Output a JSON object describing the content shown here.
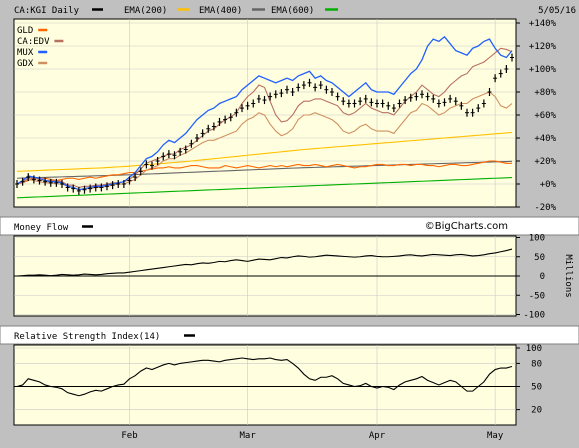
{
  "header": {
    "symbol": "CA:KGI Daily",
    "ema200": "EMA(200)",
    "ema400": "EMA(400)",
    "ema600": "EMA(600)",
    "date": "5/05/16"
  },
  "colors": {
    "plot_bg": "#ffffe0",
    "frame_bg": "#c0c0c0",
    "price": "#000000",
    "ema200": "#ffc000",
    "ema400": "#666666",
    "ema600": "#00b000",
    "gld": "#ff6600",
    "edv": "#b87060",
    "mux": "#2060ff",
    "gdx": "#d09060",
    "grid": "#c8c8c8"
  },
  "legend": [
    {
      "label": "GLD",
      "color": "#ff6600"
    },
    {
      "label": "CA:EDV",
      "color": "#b87060"
    },
    {
      "label": "MUX",
      "color": "#2060ff"
    },
    {
      "label": "GDX",
      "color": "#d09060"
    }
  ],
  "watermark": "©BigCharts.com",
  "money_flow_title": "Money Flow",
  "rsi_title": "Relative Strength Index(14)",
  "millions_label": "Millions",
  "x_tick_labels": [
    "Feb",
    "Mar",
    "Apr",
    "May"
  ],
  "chart_data": [
    {
      "type": "line",
      "title": "CA:KGI Daily",
      "ylabel": "",
      "y_tick_labels": [
        "+140%",
        "+120%",
        "+100%",
        "+80%",
        "+60%",
        "+40%",
        "+20%",
        "+0%",
        "-20%"
      ],
      "ylim": [
        -20,
        140
      ],
      "x": [
        "Jan 04",
        "Jan 05",
        "Jan 06",
        "Jan 07",
        "Jan 08",
        "Jan 11",
        "Jan 12",
        "Jan 13",
        "Jan 14",
        "Jan 15",
        "Jan 18",
        "Jan 19",
        "Jan 20",
        "Jan 21",
        "Jan 22",
        "Jan 25",
        "Jan 26",
        "Jan 27",
        "Jan 28",
        "Jan 29",
        "Feb 01",
        "Feb 02",
        "Feb 03",
        "Feb 04",
        "Feb 05",
        "Feb 08",
        "Feb 09",
        "Feb 10",
        "Feb 11",
        "Feb 12",
        "Feb 15",
        "Feb 16",
        "Feb 17",
        "Feb 18",
        "Feb 19",
        "Feb 22",
        "Feb 23",
        "Feb 24",
        "Feb 25",
        "Feb 26",
        "Feb 29",
        "Mar 01",
        "Mar 02",
        "Mar 03",
        "Mar 04",
        "Mar 07",
        "Mar 08",
        "Mar 09",
        "Mar 10",
        "Mar 11",
        "Mar 14",
        "Mar 15",
        "Mar 16",
        "Mar 17",
        "Mar 18",
        "Mar 21",
        "Mar 22",
        "Mar 23",
        "Mar 24",
        "Mar 25",
        "Mar 28",
        "Mar 29",
        "Mar 30",
        "Mar 31",
        "Apr 01",
        "Apr 04",
        "Apr 05",
        "Apr 06",
        "Apr 07",
        "Apr 08",
        "Apr 11",
        "Apr 12",
        "Apr 13",
        "Apr 14",
        "Apr 15",
        "Apr 18",
        "Apr 19",
        "Apr 20",
        "Apr 21",
        "Apr 22",
        "Apr 25",
        "Apr 26",
        "Apr 27",
        "Apr 28",
        "Apr 29",
        "May 02",
        "May 03",
        "May 04",
        "May 05"
      ],
      "series": [
        {
          "name": "CA:KGI",
          "color": "#000000",
          "values": [
            0,
            2,
            6,
            4,
            3,
            2,
            1,
            1,
            0,
            -3,
            -4,
            -6,
            -5,
            -4,
            -3,
            -3,
            -2,
            -1,
            0,
            0,
            3,
            6,
            11,
            17,
            16,
            20,
            24,
            26,
            25,
            28,
            30,
            35,
            40,
            44,
            48,
            50,
            54,
            56,
            58,
            62,
            66,
            68,
            70,
            74,
            73,
            76,
            78,
            79,
            82,
            80,
            84,
            86,
            88,
            84,
            86,
            82,
            80,
            76,
            72,
            70,
            70,
            72,
            74,
            71,
            70,
            70,
            68,
            66,
            70,
            73,
            75,
            76,
            78,
            76,
            74,
            70,
            71,
            74,
            72,
            68,
            62,
            62,
            66,
            70,
            80,
            92,
            96,
            100,
            110
          ]
        },
        {
          "name": "GLD",
          "color": "#ff6600",
          "values": [
            0,
            1,
            3,
            5,
            4,
            5,
            4,
            3,
            4,
            5,
            5,
            4,
            5,
            6,
            5,
            6,
            7,
            8,
            8,
            9,
            10,
            10,
            11,
            12,
            13,
            14,
            14,
            15,
            14,
            14,
            15,
            16,
            16,
            15,
            14,
            14,
            14,
            16,
            15,
            14,
            15,
            16,
            15,
            14,
            15,
            16,
            15,
            16,
            15,
            16,
            17,
            16,
            16,
            17,
            16,
            15,
            16,
            17,
            16,
            15,
            14,
            15,
            15,
            16,
            17,
            17,
            16,
            16,
            17,
            17,
            16,
            17,
            17,
            16,
            16,
            15,
            16,
            17,
            17,
            16,
            16,
            17,
            18,
            19,
            20,
            20,
            19,
            18,
            18
          ]
        },
        {
          "name": "CA:EDV",
          "color": "#b87060",
          "values": [
            0,
            2,
            5,
            5,
            4,
            3,
            3,
            3,
            2,
            -1,
            -1,
            -3,
            -2,
            -2,
            -1,
            -1,
            0,
            1,
            1,
            2,
            4,
            8,
            13,
            18,
            20,
            22,
            24,
            26,
            26,
            30,
            32,
            34,
            38,
            42,
            46,
            48,
            52,
            56,
            58,
            62,
            70,
            76,
            80,
            86,
            84,
            72,
            60,
            54,
            55,
            60,
            68,
            72,
            72,
            74,
            74,
            72,
            70,
            68,
            62,
            60,
            62,
            66,
            70,
            66,
            64,
            62,
            62,
            60,
            66,
            72,
            76,
            80,
            86,
            82,
            78,
            76,
            80,
            86,
            90,
            94,
            96,
            102,
            104,
            106,
            110,
            114,
            118,
            117,
            115
          ]
        },
        {
          "name": "MUX",
          "color": "#2060ff",
          "values": [
            0,
            3,
            7,
            6,
            5,
            3,
            2,
            2,
            1,
            -2,
            -3,
            -5,
            -4,
            -3,
            -2,
            -2,
            -1,
            0,
            1,
            2,
            6,
            10,
            16,
            22,
            24,
            28,
            34,
            38,
            36,
            40,
            44,
            50,
            56,
            60,
            64,
            66,
            70,
            72,
            74,
            76,
            82,
            86,
            90,
            94,
            92,
            90,
            88,
            90,
            92,
            90,
            94,
            96,
            98,
            92,
            94,
            90,
            88,
            84,
            80,
            76,
            80,
            84,
            88,
            82,
            80,
            80,
            80,
            78,
            84,
            90,
            96,
            100,
            108,
            120,
            126,
            124,
            128,
            122,
            116,
            114,
            112,
            118,
            120,
            124,
            126,
            118,
            112,
            110,
            116
          ]
        },
        {
          "name": "GDX",
          "color": "#d09060",
          "values": [
            0,
            1,
            4,
            3,
            2,
            1,
            1,
            0,
            0,
            -2,
            -3,
            -5,
            -4,
            -4,
            -3,
            -3,
            -2,
            -1,
            0,
            0,
            2,
            4,
            8,
            12,
            14,
            16,
            20,
            22,
            22,
            25,
            27,
            30,
            33,
            36,
            38,
            38,
            40,
            42,
            44,
            46,
            52,
            56,
            58,
            62,
            60,
            52,
            46,
            42,
            44,
            48,
            56,
            60,
            60,
            62,
            60,
            58,
            56,
            52,
            46,
            44,
            46,
            50,
            52,
            48,
            46,
            46,
            46,
            44,
            50,
            56,
            62,
            64,
            70,
            68,
            64,
            60,
            62,
            66,
            68,
            70,
            70,
            74,
            76,
            78,
            80,
            76,
            68,
            66,
            70
          ]
        },
        {
          "name": "EMA(200)",
          "color": "#ffc000",
          "values": [
            11,
            11.2,
            11.4,
            11.6,
            11.8,
            12,
            12.2,
            12.4,
            12.6,
            12.8,
            13,
            13.2,
            13.4,
            13.6,
            13.8,
            14,
            14.3,
            14.6,
            14.9,
            15.2,
            15.5,
            15.9,
            16.3,
            16.7,
            17.1,
            17.5,
            17.9,
            18.3,
            18.7,
            19.1,
            19.5,
            20,
            20.5,
            21,
            21.5,
            22,
            22.5,
            23,
            23.5,
            24,
            24.5,
            25,
            25.5,
            26,
            26.5,
            27,
            27.5,
            28,
            28.5,
            29,
            29.5,
            30,
            30.4,
            30.8,
            31.2,
            31.6,
            32,
            32.4,
            32.8,
            33.2,
            33.6,
            34,
            34.4,
            34.8,
            35.2,
            35.6,
            36,
            36.4,
            36.8,
            37.2,
            37.6,
            38,
            38.4,
            38.8,
            39.2,
            39.6,
            40,
            40.4,
            40.8,
            41.2,
            41.6,
            42,
            42.4,
            42.8,
            43.2,
            43.6,
            44,
            44.4,
            44.8
          ]
        },
        {
          "name": "EMA(400)",
          "color": "#666666",
          "values": [
            5,
            5.15,
            5.3,
            5.45,
            5.6,
            5.75,
            5.9,
            6.05,
            6.2,
            6.35,
            6.5,
            6.65,
            6.8,
            6.95,
            7.1,
            7.25,
            7.4,
            7.55,
            7.7,
            7.85,
            8,
            8.2,
            8.4,
            8.6,
            8.8,
            9,
            9.2,
            9.4,
            9.6,
            9.8,
            10,
            10.2,
            10.4,
            10.6,
            10.8,
            11,
            11.2,
            11.4,
            11.6,
            11.8,
            12,
            12.2,
            12.4,
            12.6,
            12.8,
            13,
            13.2,
            13.4,
            13.6,
            13.8,
            14,
            14.15,
            14.3,
            14.45,
            14.6,
            14.75,
            14.9,
            15.05,
            15.2,
            15.35,
            15.5,
            15.65,
            15.8,
            15.95,
            16.1,
            16.25,
            16.4,
            16.55,
            16.7,
            16.85,
            17,
            17.15,
            17.3,
            17.45,
            17.6,
            17.75,
            17.9,
            18.05,
            18.2,
            18.35,
            18.5,
            18.65,
            18.8,
            18.95,
            19.1,
            19.25,
            19.4,
            19.55,
            19.7
          ]
        },
        {
          "name": "EMA(600)",
          "color": "#00b000",
          "values": [
            -12,
            -11.8,
            -11.6,
            -11.4,
            -11.2,
            -11,
            -10.8,
            -10.6,
            -10.4,
            -10.2,
            -10,
            -9.8,
            -9.6,
            -9.4,
            -9.2,
            -9,
            -8.8,
            -8.6,
            -8.4,
            -8.2,
            -8,
            -7.8,
            -7.6,
            -7.4,
            -7.2,
            -7,
            -6.8,
            -6.6,
            -6.4,
            -6.2,
            -6,
            -5.8,
            -5.6,
            -5.4,
            -5.2,
            -5,
            -4.8,
            -4.6,
            -4.4,
            -4.2,
            -4,
            -3.8,
            -3.6,
            -3.4,
            -3.2,
            -3,
            -2.8,
            -2.6,
            -2.4,
            -2.2,
            -2,
            -1.8,
            -1.6,
            -1.4,
            -1.2,
            -1,
            -0.8,
            -0.6,
            -0.4,
            -0.2,
            0,
            0.2,
            0.4,
            0.6,
            0.8,
            1,
            1.2,
            1.4,
            1.6,
            1.8,
            2,
            2.2,
            2.4,
            2.6,
            2.8,
            3,
            3.2,
            3.4,
            3.6,
            3.8,
            4,
            4.2,
            4.4,
            4.6,
            4.8,
            5,
            5.2,
            5.4,
            5.6
          ]
        }
      ]
    },
    {
      "type": "line",
      "title": "Money Flow",
      "ylabel": "Millions",
      "y_tick_labels": [
        "100",
        "50",
        "0",
        "-50",
        "-100"
      ],
      "ylim": [
        -100,
        100
      ],
      "series": [
        {
          "name": "Money Flow",
          "color": "#000000",
          "values": [
            0,
            1,
            2,
            2,
            3,
            2,
            1,
            2,
            4,
            3,
            2,
            3,
            5,
            4,
            3,
            4,
            6,
            7,
            8,
            8,
            10,
            12,
            14,
            16,
            18,
            20,
            22,
            24,
            26,
            28,
            30,
            29,
            32,
            34,
            33,
            35,
            38,
            37,
            40,
            42,
            40,
            38,
            41,
            44,
            43,
            42,
            45,
            48,
            47,
            50,
            52,
            51,
            49,
            50,
            52,
            54,
            53,
            52,
            51,
            50,
            49,
            50,
            52,
            53,
            51,
            50,
            50,
            51,
            52,
            54,
            55,
            53,
            52,
            54,
            56,
            55,
            54,
            53,
            55,
            56,
            54,
            52,
            53,
            55,
            58,
            60,
            63,
            66,
            70
          ]
        }
      ]
    },
    {
      "type": "line",
      "title": "Relative Strength Index(14)",
      "ylabel": "",
      "y_tick_labels": [
        "100",
        "80",
        "50",
        "20"
      ],
      "ylim": [
        0,
        100
      ],
      "reference_lines": [
        50
      ],
      "series": [
        {
          "name": "RSI(14)",
          "color": "#000000",
          "values": [
            50,
            52,
            60,
            58,
            56,
            52,
            50,
            49,
            47,
            42,
            40,
            38,
            40,
            43,
            45,
            44,
            47,
            50,
            52,
            53,
            60,
            64,
            70,
            74,
            72,
            75,
            78,
            80,
            78,
            80,
            81,
            82,
            83,
            84,
            84,
            83,
            82,
            84,
            85,
            86,
            87,
            86,
            85,
            86,
            86,
            87,
            85,
            84,
            85,
            80,
            74,
            66,
            60,
            58,
            62,
            62,
            64,
            60,
            54,
            52,
            50,
            51,
            54,
            50,
            48,
            50,
            49,
            46,
            52,
            56,
            58,
            60,
            63,
            58,
            55,
            52,
            55,
            58,
            56,
            50,
            44,
            44,
            50,
            56,
            66,
            72,
            74,
            74,
            76
          ]
        }
      ]
    }
  ]
}
